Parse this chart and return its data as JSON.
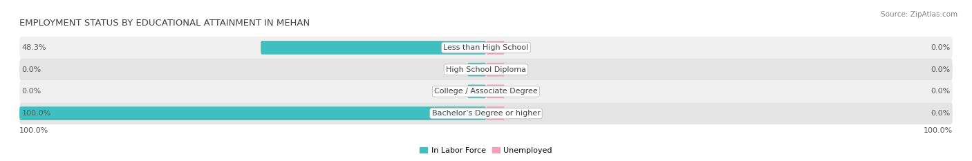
{
  "title": "EMPLOYMENT STATUS BY EDUCATIONAL ATTAINMENT IN MEHAN",
  "source": "Source: ZipAtlas.com",
  "categories": [
    "Less than High School",
    "High School Diploma",
    "College / Associate Degree",
    "Bachelor’s Degree or higher"
  ],
  "in_labor_force": [
    48.3,
    0.0,
    0.0,
    100.0
  ],
  "unemployed": [
    0.0,
    0.0,
    0.0,
    0.0
  ],
  "color_labor": "#3FBFBF",
  "color_unemployed": "#F4A0B5",
  "color_bg_row_odd": "#F0F0F0",
  "color_bg_row_even": "#E4E4E4",
  "bar_height": 0.62,
  "label_fontsize": 8.0,
  "title_fontsize": 9.5,
  "source_fontsize": 7.5,
  "value_fontsize": 8.0,
  "legend_fontsize": 8.0,
  "max_val": 100.0,
  "min_bar_unemployed": 4.0,
  "min_bar_labor_zero": 4.0
}
